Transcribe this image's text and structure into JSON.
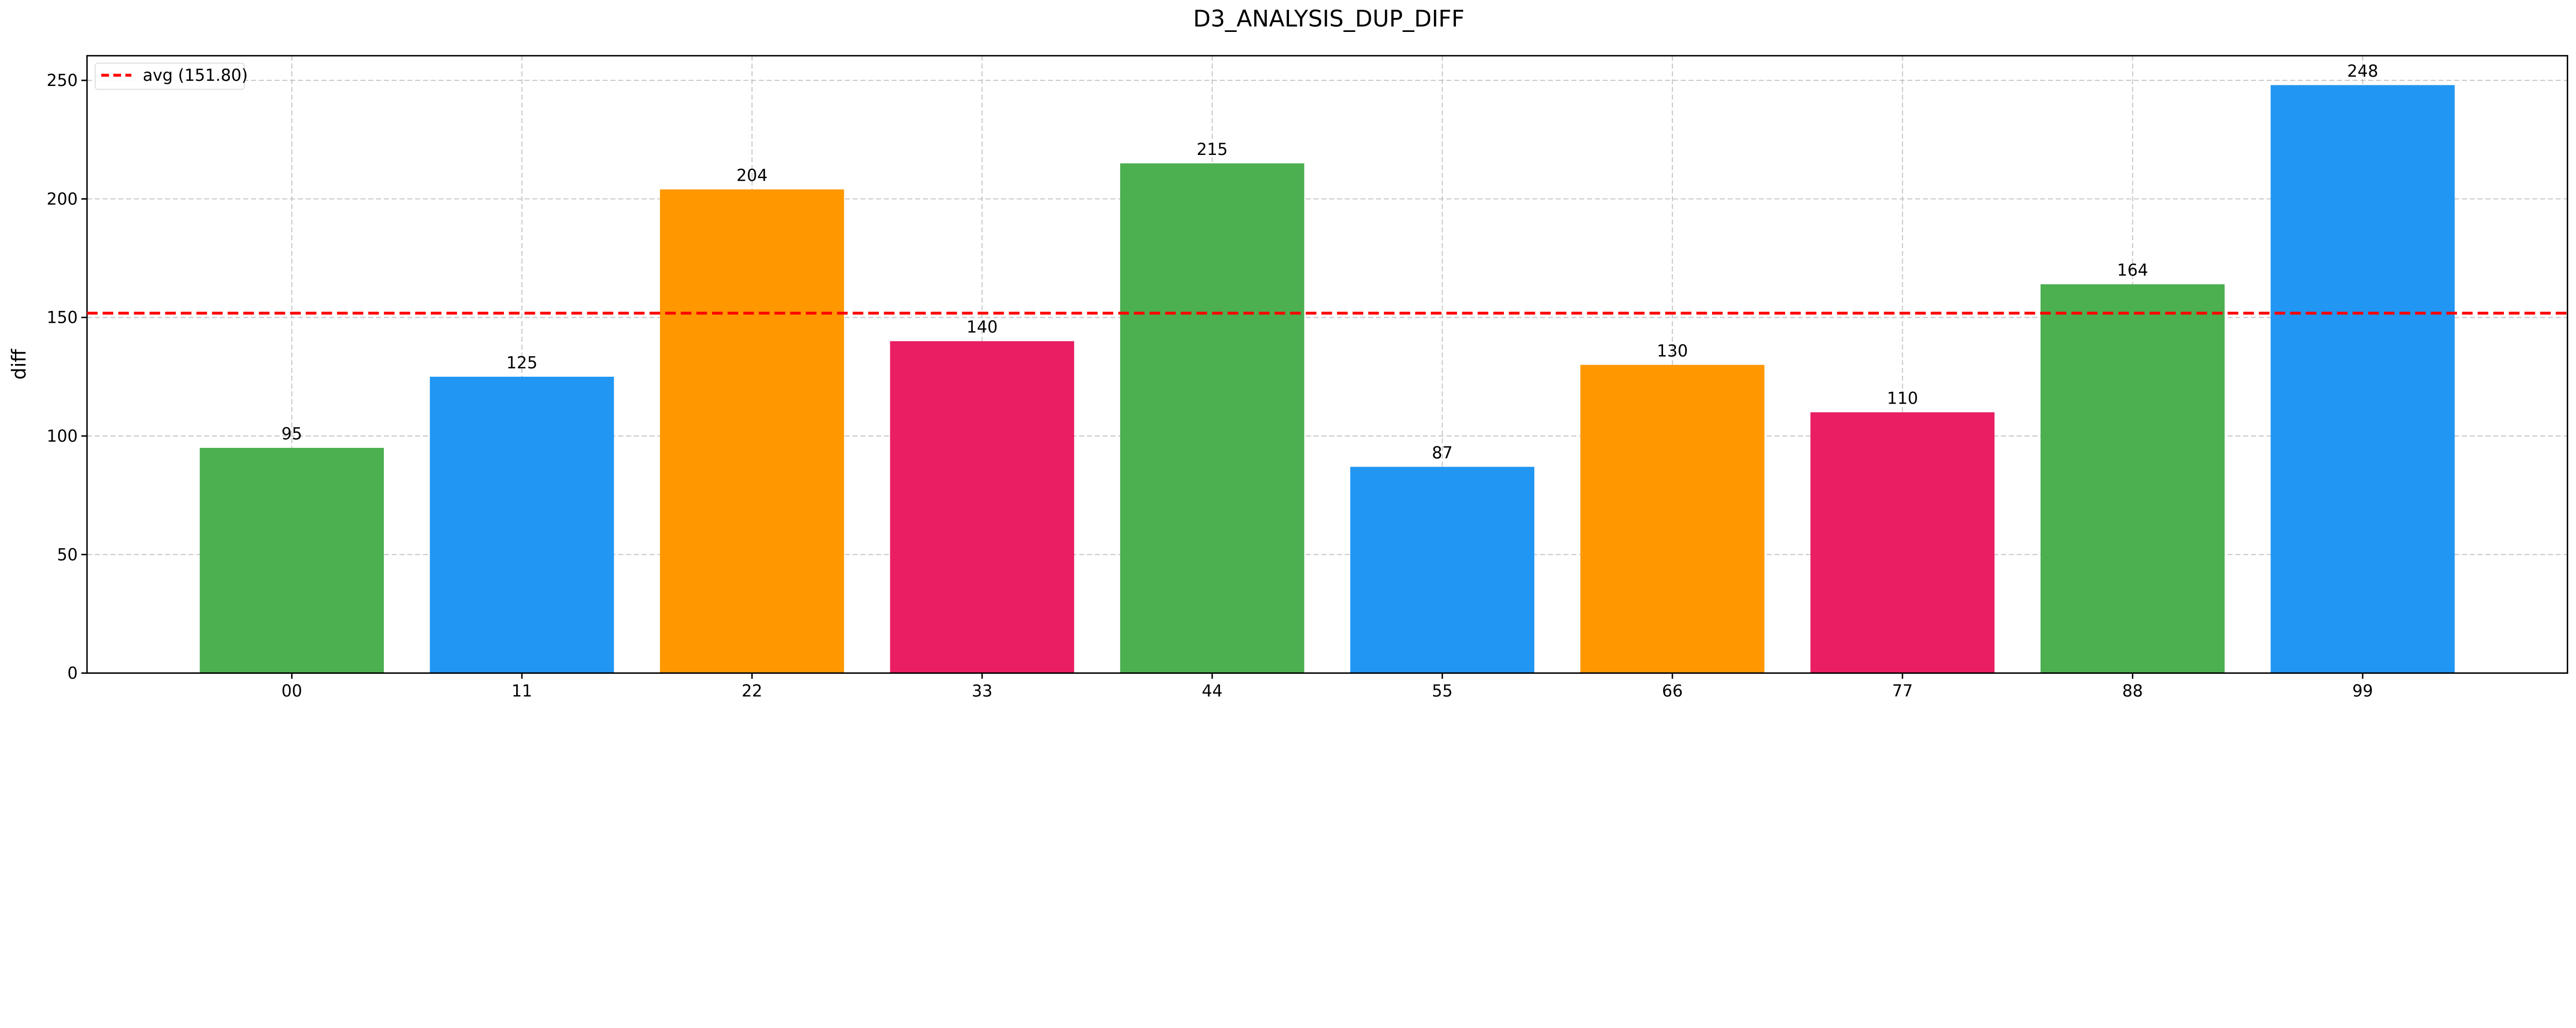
{
  "chart_data": {
    "type": "bar",
    "title": "D3_ANALYSIS_DUP_DIFF",
    "xlabel": "",
    "ylabel": "diff",
    "categories": [
      "00",
      "11",
      "22",
      "33",
      "44",
      "55",
      "66",
      "77",
      "88",
      "99"
    ],
    "values": [
      95,
      125,
      204,
      140,
      215,
      87,
      130,
      110,
      164,
      248
    ],
    "colors": [
      "#4CAF50",
      "#2196F3",
      "#FF9800",
      "#E91E63",
      "#4CAF50",
      "#2196F3",
      "#FF9800",
      "#E91E63",
      "#4CAF50",
      "#2196F3"
    ],
    "ylim": [
      0,
      260.4
    ],
    "yticks": [
      0,
      50,
      100,
      150,
      200,
      250
    ],
    "grid": true,
    "reference_line": {
      "label": "avg (151.80)",
      "value": 151.8,
      "color": "#FF0000",
      "style": "dashed"
    },
    "legend_position": "top-left"
  }
}
